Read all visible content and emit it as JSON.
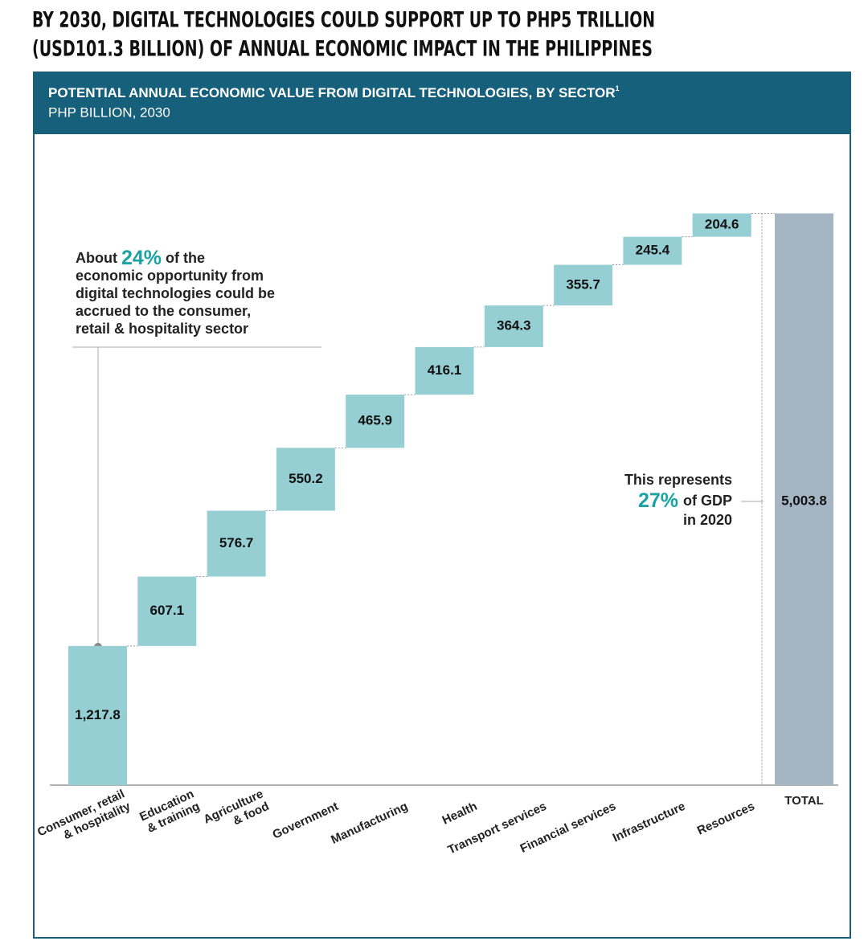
{
  "header": {
    "title_lines": [
      "BY 2030, DIGITAL TECHNOLOGIES COULD SUPPORT UP TO PHP5 TRILLION",
      "(USD101.3 BILLION) OF ANNUAL ECONOMIC IMPACT IN THE PHILIPPINES"
    ]
  },
  "chart_data": {
    "type": "waterfall",
    "title": "POTENTIAL ANNUAL ECONOMIC VALUE FROM DIGITAL TECHNOLOGIES, BY SECTOR",
    "title_note": "1",
    "subtitle": "PHP BILLION, 2030",
    "categories": [
      [
        "Consumer, retail",
        "& hospitality"
      ],
      [
        "Education",
        "& training"
      ],
      [
        "Agriculture",
        "& food"
      ],
      [
        "Government"
      ],
      [
        "Manufacturing"
      ],
      [
        "Health"
      ],
      [
        "Transport services"
      ],
      [
        "Financial services"
      ],
      [
        "Infrastructure"
      ],
      [
        "Resources"
      ]
    ],
    "values": [
      1217.8,
      607.1,
      576.7,
      550.2,
      465.9,
      416.1,
      364.3,
      355.7,
      245.4,
      204.6
    ],
    "value_labels": [
      "1,217.8",
      "607.1",
      "576.7",
      "550.2",
      "465.9",
      "416.1",
      "364.3",
      "355.7",
      "245.4",
      "204.6"
    ],
    "color": "#96cfd3",
    "total": {
      "name": "TOTAL",
      "value": 5003.8,
      "value_label": "5,003.8",
      "color": "#a5b5c3"
    },
    "ylim": [
      0,
      5500
    ],
    "annotation_left": [
      "About",
      "24%",
      "of the",
      "economic opportunity from",
      "digital technologies could be",
      "accrued to the consumer,",
      "retail & hospitality sector"
    ],
    "annotation_right": [
      "This represents",
      "27%",
      "of GDP",
      "in 2020"
    ]
  }
}
